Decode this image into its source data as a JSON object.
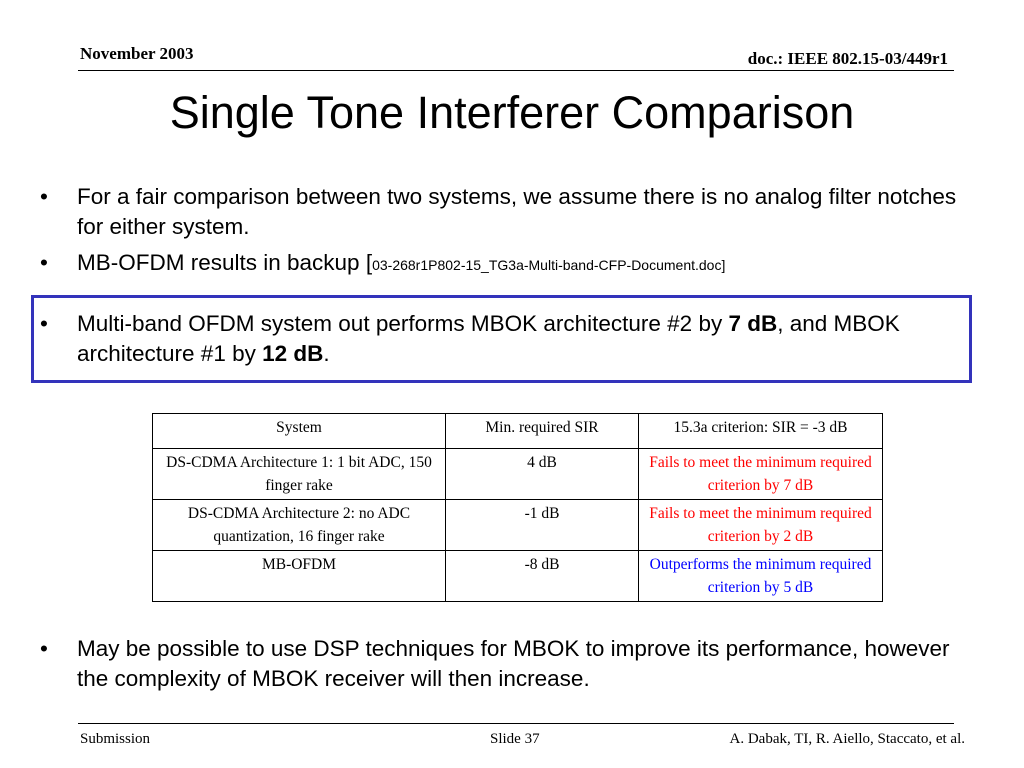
{
  "header": {
    "date": "November 2003",
    "doc_id": "doc.: IEEE 802.15-03/449r1"
  },
  "title": "Single Tone Interferer Comparison",
  "bullets_top": [
    {
      "text": "For a fair comparison between two systems, we assume there is no analog filter notches for either system."
    },
    {
      "text": "MB-OFDM results in backup [",
      "ref": "03-268r1P802-15_TG3a-Multi-band-CFP-Document.doc]"
    }
  ],
  "highlight_bullet": {
    "part1": "Multi-band OFDM system out performs MBOK architecture #2 by ",
    "bold1": "7 dB",
    "part2": ", and MBOK architecture #1 by ",
    "bold2": "12 dB",
    "part3": "."
  },
  "table": {
    "headers": [
      "System",
      "Min. required SIR",
      "15.3a criterion: SIR = -3 dB"
    ],
    "rows": [
      {
        "system": "DS-CDMA Architecture 1: 1 bit ADC, 150 finger rake",
        "sir": "4 dB",
        "result": "Fails to meet the minimum required criterion by 7 dB",
        "result_color": "#ff0000"
      },
      {
        "system": "DS-CDMA Architecture 2: no ADC quantization, 16 finger rake",
        "sir": "-1 dB",
        "result": "Fails to meet the minimum required criterion by 2 dB",
        "result_color": "#ff0000"
      },
      {
        "system": "MB-OFDM",
        "sir": "-8 dB",
        "result": "Outperforms the minimum required criterion by 5 dB",
        "result_color": "#0000ff"
      }
    ]
  },
  "bullet_bottom": "May be possible to use DSP techniques for MBOK to improve its performance, however the complexity of MBOK receiver will then increase.",
  "bullet_glyph": "•",
  "footer": {
    "left": "Submission",
    "center": "Slide 37",
    "right": "A. Dabak, TI, R. Aiello, Staccato, et al."
  },
  "colors": {
    "highlight_border": "#3333bb",
    "fail_text": "#ff0000",
    "pass_text": "#0000ff"
  }
}
